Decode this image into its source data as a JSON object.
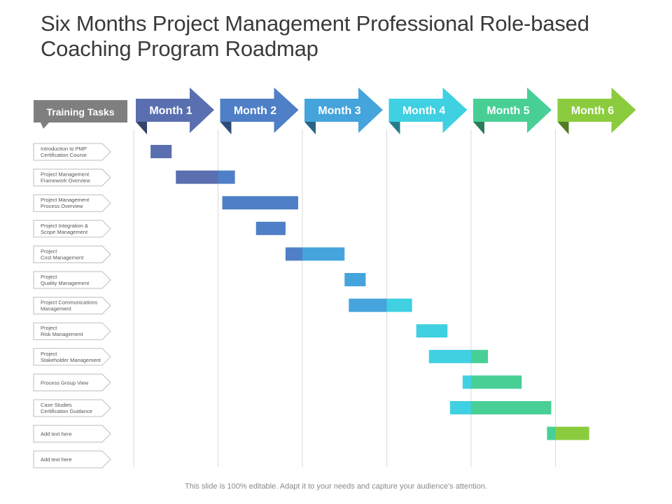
{
  "title": "Six Months Project Management Professional Role-based Coaching Program Roadmap",
  "footer": "This slide is 100% editable. Adapt it to your needs and capture your audience's attention.",
  "tasks_header": "Training Tasks",
  "colors": {
    "month_1": "#5a6fb0",
    "month_2": "#4f7fc6",
    "month_3": "#45a4dc",
    "month_4": "#3fd0e2",
    "month_5": "#48cf96",
    "month_6": "#8bcc3e",
    "header_box": "#7f7f7f",
    "grid": "#d9d9d9",
    "task_border": "#bdbdbd"
  },
  "chart_data": {
    "type": "gantt",
    "months": [
      "Month 1",
      "Month 2",
      "Month 3",
      "Month 4",
      "Month 5",
      "Month 6"
    ],
    "tasks": [
      {
        "lines": [
          "Introduction  to PMP",
          "Certification  Course"
        ],
        "start": 0.2,
        "end": 0.45
      },
      {
        "lines": [
          "Project Management",
          "Framework Overview"
        ],
        "start": 0.5,
        "end": 1.2
      },
      {
        "lines": [
          "Project Management",
          "Process Overview"
        ],
        "start": 1.05,
        "end": 1.95
      },
      {
        "lines": [
          "Project Integration  &",
          "Scope  Management"
        ],
        "start": 1.45,
        "end": 1.8
      },
      {
        "lines": [
          "Project",
          "Cost Management"
        ],
        "start": 1.8,
        "end": 2.5
      },
      {
        "lines": [
          "Project",
          "Quality  Management"
        ],
        "start": 2.5,
        "end": 2.75
      },
      {
        "lines": [
          "Project Communications",
          "Management"
        ],
        "start": 2.55,
        "end": 3.3
      },
      {
        "lines": [
          "Project",
          "Risk Management"
        ],
        "start": 3.35,
        "end": 3.72
      },
      {
        "lines": [
          "Project",
          "Stakeholder  Management"
        ],
        "start": 3.5,
        "end": 4.2
      },
      {
        "lines": [
          "Process Group View"
        ],
        "start": 3.9,
        "end": 4.6
      },
      {
        "lines": [
          "Case Studies",
          "Certification  Guidance"
        ],
        "start": 3.75,
        "end": 4.95
      },
      {
        "lines": [
          "Add text here"
        ],
        "start": 4.9,
        "end": 5.4
      },
      {
        "lines": [
          "Add text here"
        ],
        "start": null,
        "end": null
      }
    ]
  }
}
